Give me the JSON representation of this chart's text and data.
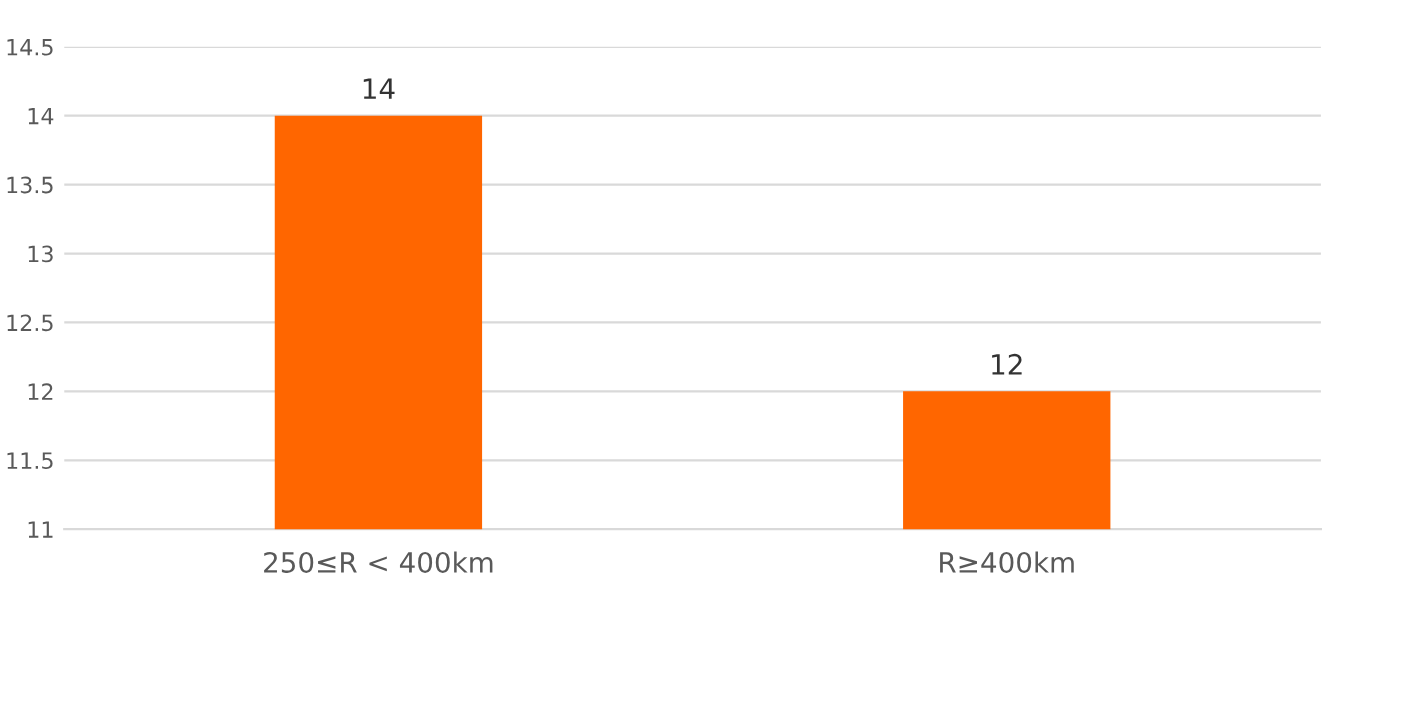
{
  "chart_data": {
    "type": "bar",
    "categories": [
      "250≤R < 400km",
      "R≥400km"
    ],
    "values": [
      14,
      12
    ],
    "color": "#ff6600",
    "ylim": [
      11,
      14.5
    ],
    "yticks": [
      11,
      11.5,
      12,
      12.5,
      13,
      13.5,
      14,
      14.5
    ],
    "grid": "y",
    "data_labels": true
  }
}
